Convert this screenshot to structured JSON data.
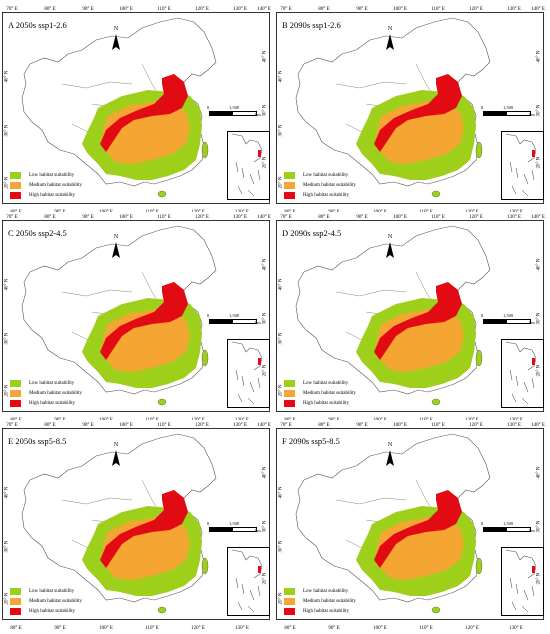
{
  "figure": {
    "panels": [
      {
        "title": "A 2050s ssp1-2.6"
      },
      {
        "title": "B 2090s ssp1-2.6"
      },
      {
        "title": "C 2050s ssp2-4.5"
      },
      {
        "title": "D 2090s ssp2-4.5"
      },
      {
        "title": "E 2050s ssp5-8.5"
      },
      {
        "title": "F 2090s ssp5-8.5"
      }
    ],
    "top_lon_labels": [
      "70° E",
      "80° E",
      "90° E",
      "100° E",
      "110° E",
      "120° E",
      "130° E",
      "140° E"
    ],
    "bottom_lon_labels": [
      "80° E",
      "90° E",
      "100° E",
      "110° E",
      "120° E",
      "130° E"
    ],
    "lat_labels_left": [
      "40° N",
      "30° N",
      "20° N"
    ],
    "lat_labels_right": [
      "40° N",
      "30° N",
      "20° N"
    ],
    "north_label": "N",
    "scale": {
      "zero": "0",
      "value": "1,500",
      "unit": "km"
    },
    "legend": [
      {
        "label": "Low habitat suitability",
        "color": "#9ed01b"
      },
      {
        "label": "Medium habitat suitability",
        "color": "#f4a532"
      },
      {
        "label": "High habitat suitability",
        "color": "#e30b13"
      }
    ]
  }
}
